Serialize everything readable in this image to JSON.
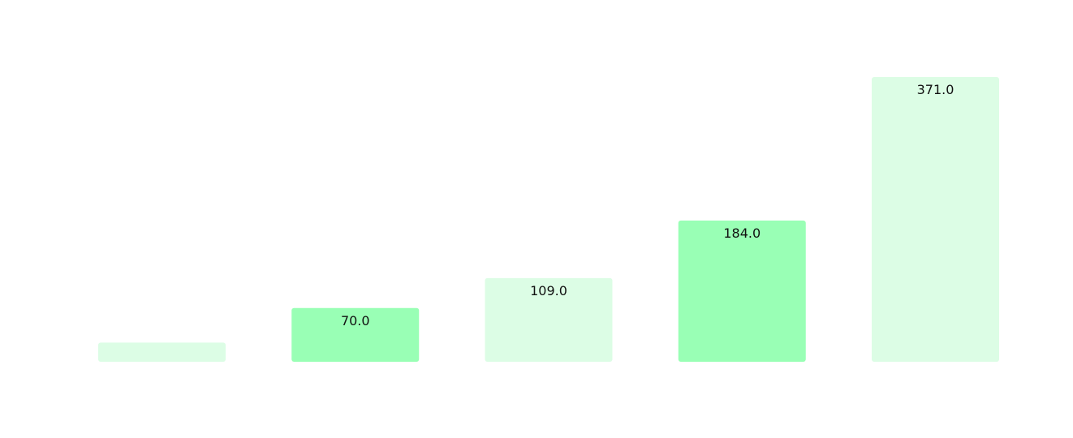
{
  "chart_data": {
    "type": "bar",
    "categories": [
      "",
      "",
      "",
      "",
      ""
    ],
    "values": [
      25,
      70,
      109,
      184,
      371
    ],
    "labels": [
      "",
      "70.0",
      "109.0",
      "184.0",
      "371.0"
    ],
    "colors": [
      "#dcfde5",
      "#99ffb5",
      "#dcfde5",
      "#99ffb5",
      "#dcfde5"
    ],
    "ylim": [
      0,
      371
    ],
    "grid": false,
    "title": "",
    "xlabel": "",
    "ylabel": ""
  }
}
